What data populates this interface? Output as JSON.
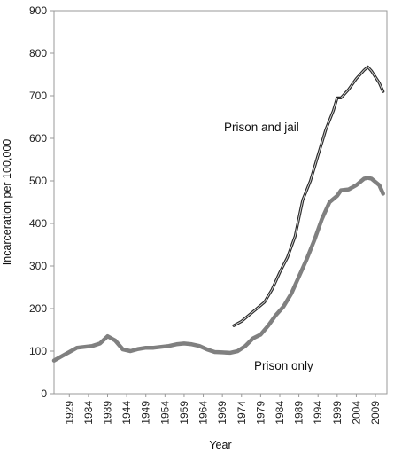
{
  "chart_data": {
    "type": "line",
    "xlabel": "Year",
    "ylabel": "Incarceration per 100,000",
    "xlim": [
      1925,
      2012
    ],
    "ylim": [
      0,
      900
    ],
    "y_ticks": [
      0,
      100,
      200,
      300,
      400,
      500,
      600,
      700,
      800,
      900
    ],
    "x_ticks": [
      1929,
      1934,
      1939,
      1944,
      1949,
      1954,
      1959,
      1964,
      1969,
      1974,
      1979,
      1984,
      1989,
      1994,
      1999,
      2004,
      2009
    ],
    "x_tick_labels": [
      "1929",
      "1934",
      "1939",
      "1944",
      "1949",
      "1954",
      "1959",
      "1964",
      "1969",
      "1974",
      "1979",
      "1984",
      "1989",
      "1994",
      "1999",
      "2004",
      "2009"
    ],
    "y_tick_labels": [
      "0",
      "100",
      "200",
      "300",
      "400",
      "500",
      "600",
      "700",
      "800",
      "900"
    ],
    "grid": false,
    "legend": "none",
    "annotations": [
      {
        "text": "Prison and jail",
        "series": "Prison and jail"
      },
      {
        "text": "Prison only",
        "series": "Prison only"
      }
    ],
    "series": [
      {
        "name": "Prison and jail",
        "color": "#2b2b2b",
        "x": [
          1972,
          1974,
          1976,
          1978,
          1980,
          1982,
          1984,
          1986,
          1988,
          1990,
          1992,
          1994,
          1996,
          1998,
          1999,
          2000,
          2002,
          2004,
          2006,
          2007,
          2008,
          2010,
          2011
        ],
        "y": [
          160,
          170,
          185,
          200,
          215,
          245,
          285,
          320,
          370,
          455,
          500,
          560,
          620,
          665,
          695,
          695,
          715,
          740,
          760,
          768,
          758,
          730,
          710
        ]
      },
      {
        "name": "Prison only",
        "color": "#808080",
        "x": [
          1925,
          1927,
          1929,
          1931,
          1933,
          1935,
          1937,
          1939,
          1941,
          1943,
          1945,
          1947,
          1949,
          1951,
          1953,
          1955,
          1957,
          1959,
          1961,
          1963,
          1965,
          1967,
          1969,
          1971,
          1973,
          1975,
          1977,
          1979,
          1981,
          1983,
          1985,
          1987,
          1989,
          1991,
          1993,
          1995,
          1997,
          1999,
          2000,
          2002,
          2004,
          2006,
          2007,
          2008,
          2010,
          2011
        ],
        "y": [
          78,
          88,
          98,
          108,
          110,
          112,
          118,
          135,
          125,
          104,
          100,
          105,
          108,
          108,
          110,
          112,
          116,
          118,
          116,
          112,
          104,
          98,
          97,
          96,
          100,
          112,
          130,
          139,
          160,
          185,
          205,
          235,
          275,
          315,
          360,
          410,
          450,
          465,
          478,
          480,
          490,
          505,
          507,
          505,
          490,
          470
        ]
      }
    ]
  }
}
